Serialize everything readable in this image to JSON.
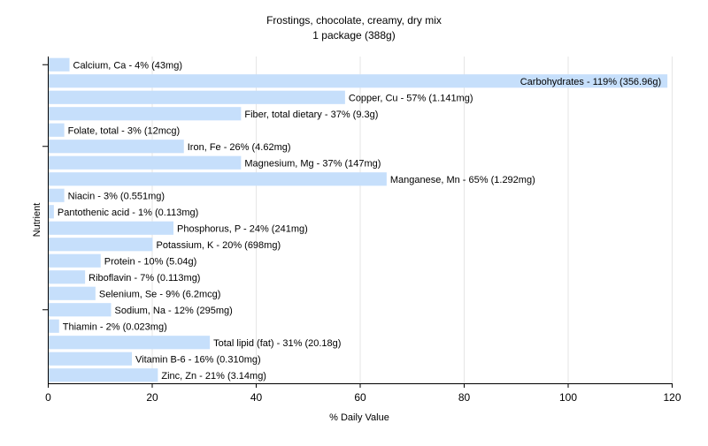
{
  "chart_data": {
    "type": "bar",
    "orientation": "horizontal",
    "title": "Frostings, chocolate, creamy, dry mix",
    "subtitle": "1 package (388g)",
    "xlabel": "% Daily Value",
    "ylabel": "Nutrient",
    "xlim": [
      0,
      120
    ],
    "xticks": [
      0,
      20,
      40,
      60,
      80,
      100,
      120
    ],
    "grid": true,
    "bar_color": "#c6dffb",
    "categories": [
      "Calcium, Ca",
      "Carbohydrates",
      "Copper, Cu",
      "Fiber, total dietary",
      "Folate, total",
      "Iron, Fe",
      "Magnesium, Mg",
      "Manganese, Mn",
      "Niacin",
      "Pantothenic acid",
      "Phosphorus, P",
      "Potassium, K",
      "Protein",
      "Riboflavin",
      "Selenium, Se",
      "Sodium, Na",
      "Thiamin",
      "Total lipid (fat)",
      "Vitamin B-6",
      "Zinc, Zn"
    ],
    "values": [
      4,
      119,
      57,
      37,
      3,
      26,
      37,
      65,
      3,
      1,
      24,
      20,
      10,
      7,
      9,
      12,
      2,
      31,
      16,
      21
    ],
    "labels": [
      "Calcium, Ca - 4% (43mg)",
      "Carbohydrates - 119% (356.96g)",
      "Copper, Cu - 57% (1.141mg)",
      "Fiber, total dietary - 37% (9.3g)",
      "Folate, total - 3% (12mcg)",
      "Iron, Fe - 26% (4.62mg)",
      "Magnesium, Mg - 37% (147mg)",
      "Manganese, Mn - 65% (1.292mg)",
      "Niacin - 3% (0.551mg)",
      "Pantothenic acid - 1% (0.113mg)",
      "Phosphorus, P - 24% (241mg)",
      "Potassium, K - 20% (698mg)",
      "Protein - 10% (5.04g)",
      "Riboflavin - 7% (0.113mg)",
      "Selenium, Se - 9% (6.2mcg)",
      "Sodium, Na - 12% (295mg)",
      "Thiamin - 2% (0.023mg)",
      "Total lipid (fat) - 31% (20.18g)",
      "Vitamin B-6 - 16% (0.310mg)",
      "Zinc, Zn - 21% (3.14mg)"
    ]
  }
}
